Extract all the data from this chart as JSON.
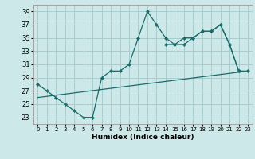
{
  "xlabel": "Humidex (Indice chaleur)",
  "bg_color": "#cce8e8",
  "grid_color": "#aacccc",
  "line_color": "#1a6b6b",
  "xlim": [
    -0.5,
    23.5
  ],
  "ylim": [
    22.0,
    40.0
  ],
  "yticks": [
    23,
    25,
    27,
    29,
    31,
    33,
    35,
    37,
    39
  ],
  "xticks": [
    0,
    1,
    2,
    3,
    4,
    5,
    6,
    7,
    8,
    9,
    10,
    11,
    12,
    13,
    14,
    15,
    16,
    17,
    18,
    19,
    20,
    21,
    22,
    23
  ],
  "line1_x": [
    0,
    1,
    2,
    3,
    4,
    5,
    6,
    7,
    8,
    9,
    10,
    11,
    12,
    13,
    14,
    15,
    16,
    17,
    18,
    19,
    20,
    21,
    22
  ],
  "line1_y": [
    28,
    27,
    26,
    25,
    24,
    23,
    23,
    29,
    30,
    30,
    31,
    35,
    39,
    37,
    35,
    34,
    34,
    35,
    36,
    36,
    37,
    34,
    30
  ],
  "line2_x": [
    14,
    15,
    16,
    17,
    18,
    19,
    20,
    21,
    22,
    23
  ],
  "line2_y": [
    34,
    34,
    35,
    35,
    36,
    36,
    37,
    34,
    30,
    30
  ],
  "line3_x": [
    0,
    23
  ],
  "line3_y": [
    26.0,
    30.0
  ]
}
